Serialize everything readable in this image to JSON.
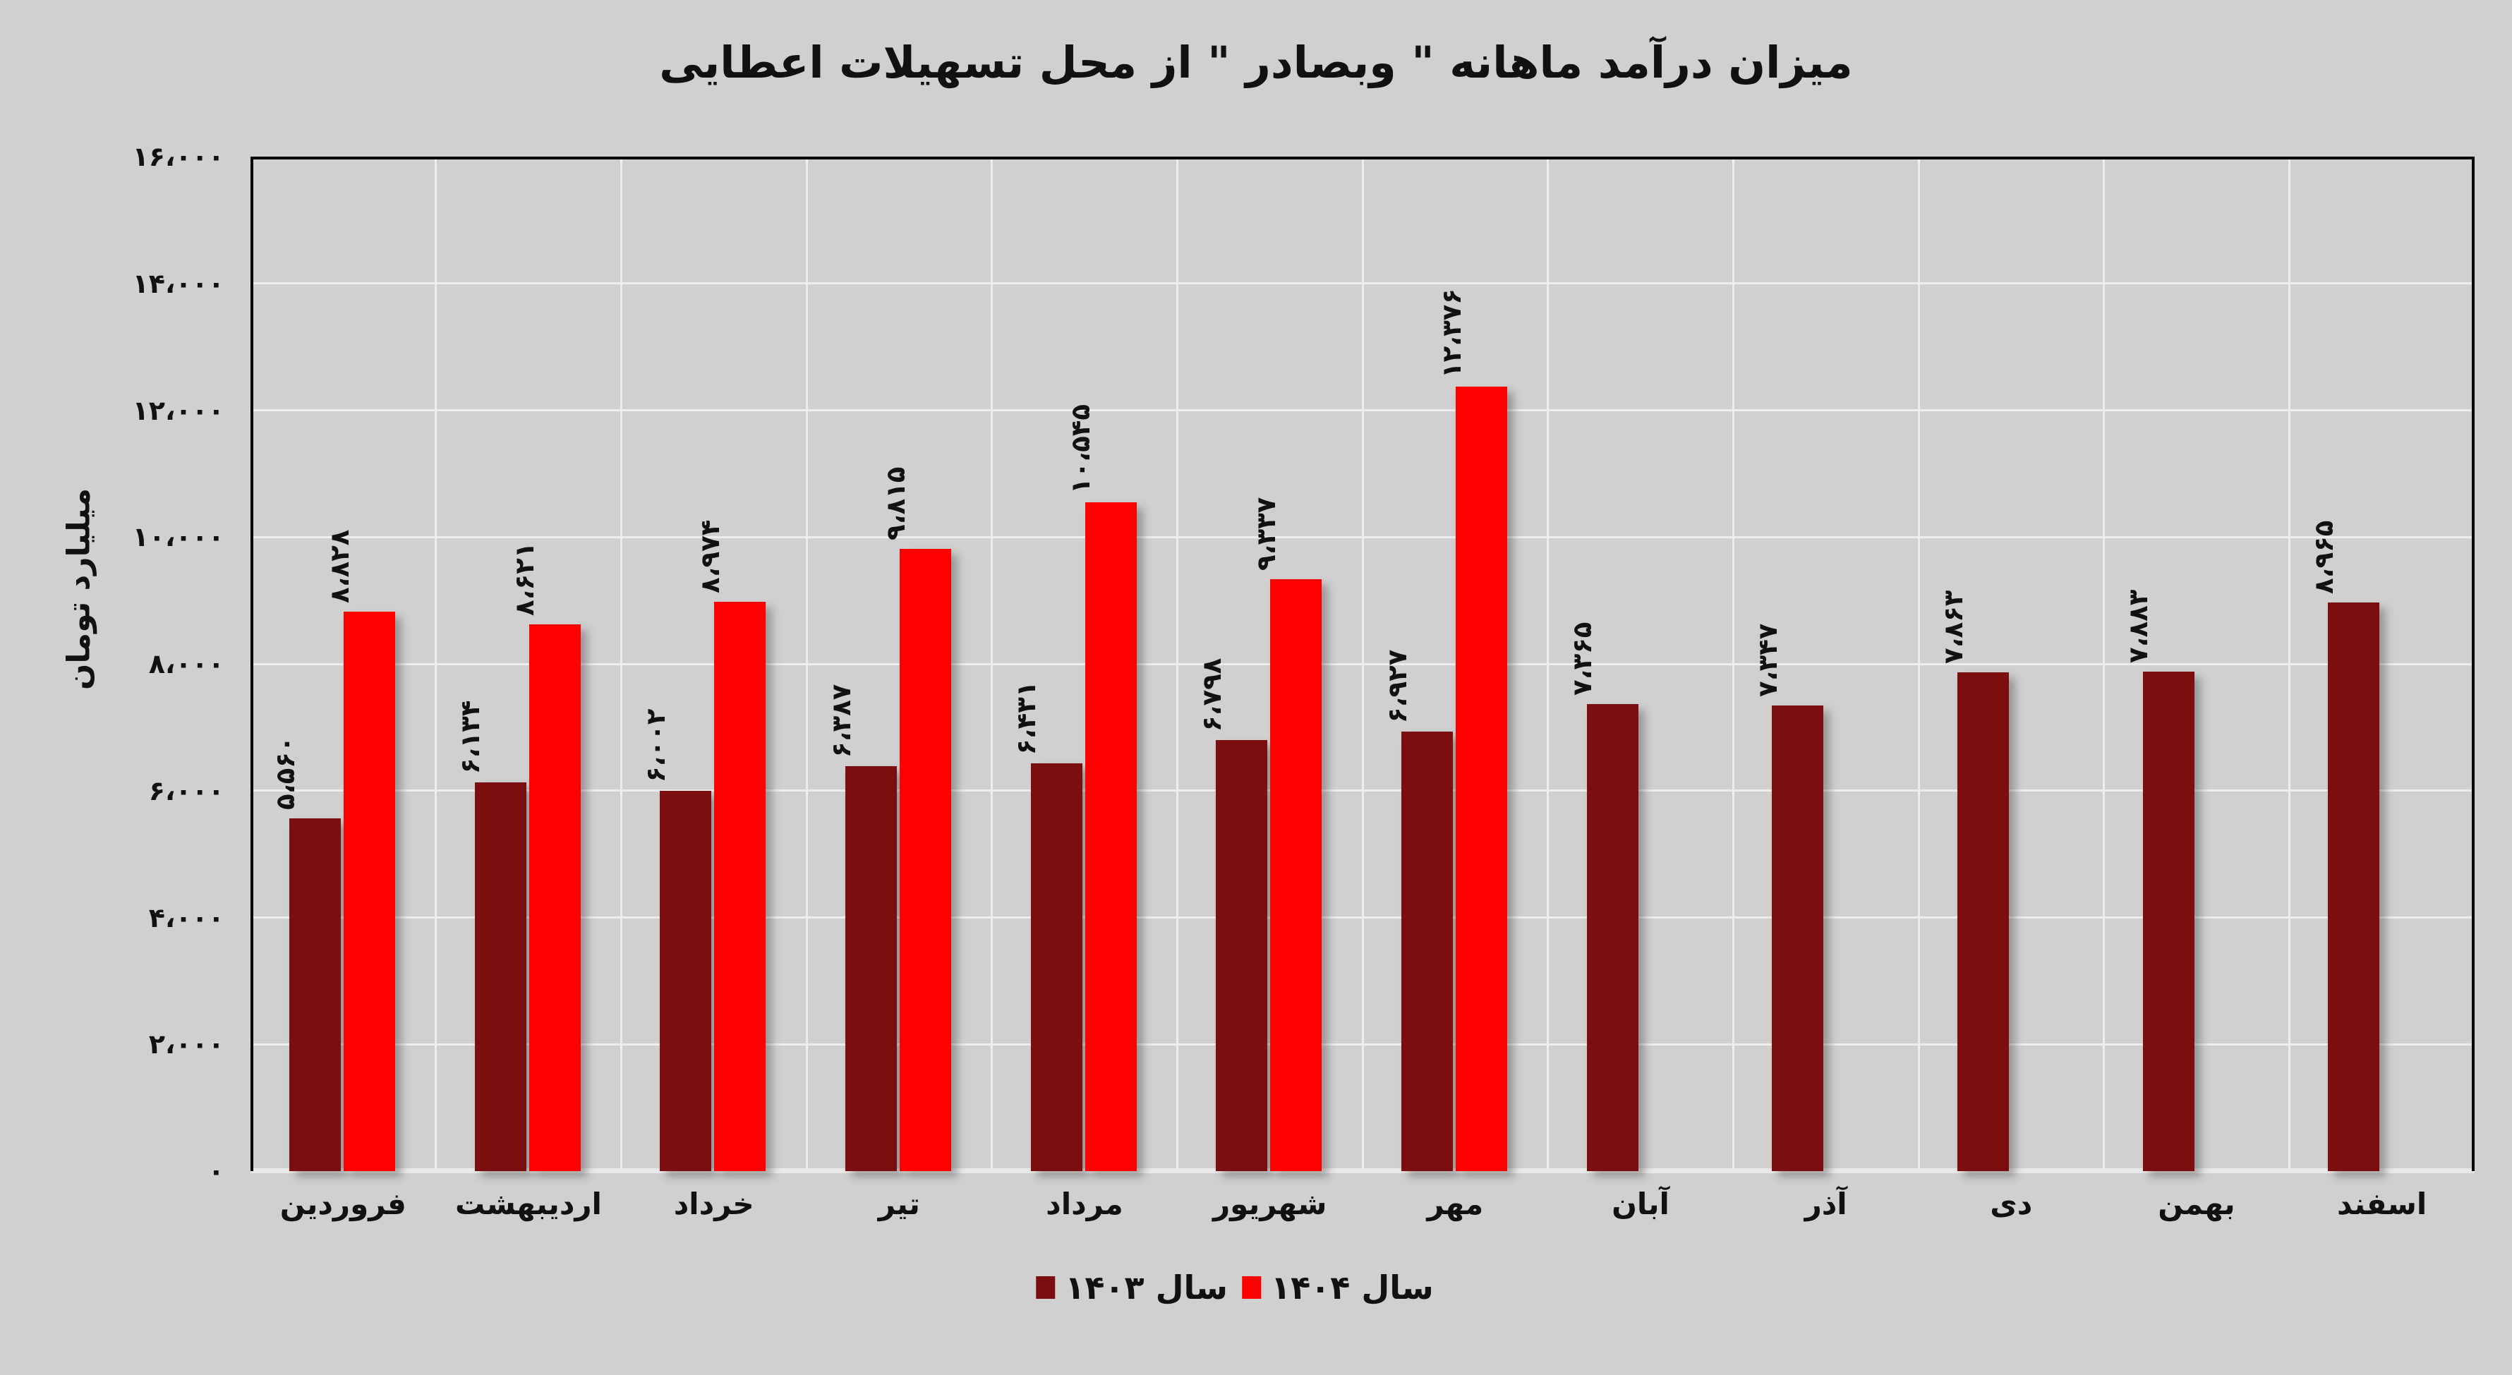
{
  "title": "میزان درآمد ماهانه \" وبصادر \" از محل تسهیلات اعطایی",
  "y_axis": {
    "title": "میلیارد تومان",
    "ticks": [
      {
        "value": 0,
        "label": "۰"
      },
      {
        "value": 2000,
        "label": "۲،۰۰۰"
      },
      {
        "value": 4000,
        "label": "۴،۰۰۰"
      },
      {
        "value": 6000,
        "label": "۶،۰۰۰"
      },
      {
        "value": 8000,
        "label": "۸،۰۰۰"
      },
      {
        "value": 10000,
        "label": "۱۰،۰۰۰"
      },
      {
        "value": 12000,
        "label": "۱۲،۰۰۰"
      },
      {
        "value": 14000,
        "label": "۱۴،۰۰۰"
      },
      {
        "value": 16000,
        "label": "۱۶،۰۰۰"
      }
    ]
  },
  "chart_data": {
    "type": "bar",
    "title": "میزان درآمد ماهانه \" وبصادر \" از محل تسهیلات اعطایی",
    "xlabel": "",
    "ylabel": "میلیارد تومان",
    "ylim": [
      0,
      16000
    ],
    "grid": true,
    "legend_position": "bottom",
    "categories": [
      "فروردین",
      "اردیبهشت",
      "خرداد",
      "تیر",
      "مرداد",
      "شهریور",
      "مهر",
      "آبان",
      "آذر",
      "دی",
      "بهمن",
      "اسفند"
    ],
    "series": [
      {
        "name": "سال ۱۴۰۳",
        "color": "#7B0E0E",
        "values": [
          5560,
          6134,
          6002,
          6387,
          6431,
          6798,
          6927,
          7365,
          7347,
          7863,
          7883,
          8965
        ],
        "labels": [
          "۵،۵۶۰",
          "۶،۱۳۴",
          "۶،۰۰۲",
          "۶،۳۸۷",
          "۶،۴۳۱",
          "۶،۷۹۸",
          "۶،۹۲۷",
          "۷،۳۶۵",
          "۷،۳۴۷",
          "۷،۸۶۳",
          "۷،۸۸۳",
          "۸،۹۶۵"
        ]
      },
      {
        "name": "سال ۱۴۰۴",
        "color": "#FE0000",
        "values": [
          8828,
          8621,
          8974,
          9815,
          10545,
          9337,
          12376,
          null,
          null,
          null,
          null,
          null
        ],
        "labels": [
          "۸،۸۲۸",
          "۸،۶۲۱",
          "۸،۹۷۴",
          "۹،۸۱۵",
          "۱۰،۵۴۵",
          "۹،۳۳۷",
          "۱۲،۳۷۶",
          null,
          null,
          null,
          null,
          null
        ]
      }
    ]
  },
  "legend": {
    "items": [
      {
        "label": "سال ۱۴۰۳",
        "color": "#7B0E0E"
      },
      {
        "label": "سال ۱۴۰۴",
        "color": "#FE0000"
      }
    ]
  },
  "colors": {
    "background": "#D0D0D0",
    "grid": "#EDEDED",
    "plot_border": "#000000",
    "bar_1403": "#7B0E0E",
    "bar_1404": "#FE0000"
  }
}
